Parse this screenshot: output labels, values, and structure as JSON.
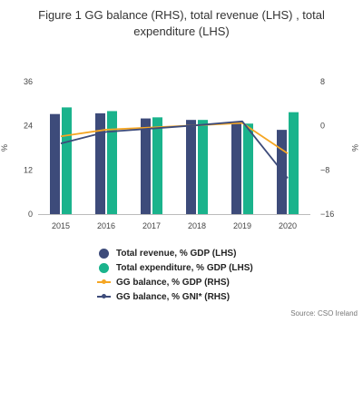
{
  "title": "Figure 1 GG balance (RHS), total revenue (LHS) , total expenditure (LHS)",
  "source": "Source: CSO Ireland",
  "chart_data": {
    "type": "bar",
    "categories": [
      "2015",
      "2016",
      "2017",
      "2018",
      "2019",
      "2020"
    ],
    "series": [
      {
        "name": "Total revenue, % GDP (LHS)",
        "kind": "bar",
        "axis": "left",
        "color": "#3d4b7a",
        "values": [
          27.2,
          27.4,
          26.0,
          25.6,
          24.8,
          22.9
        ]
      },
      {
        "name": "Total expenditure, % GDP (LHS)",
        "kind": "bar",
        "axis": "left",
        "color": "#1ab38c",
        "values": [
          29.0,
          28.0,
          26.3,
          25.6,
          24.6,
          27.7
        ]
      },
      {
        "name": "GG balance, % GDP (RHS)",
        "kind": "line",
        "axis": "right",
        "color": "#f5a623",
        "values": [
          -1.9,
          -0.7,
          -0.3,
          0.1,
          0.5,
          -5.0
        ]
      },
      {
        "name": "GG balance, % GNI* (RHS)",
        "kind": "line",
        "axis": "right",
        "color": "#3d4b7a",
        "values": [
          -3.2,
          -1.1,
          -0.5,
          0.1,
          0.8,
          -9.5
        ]
      }
    ],
    "left_axis": {
      "label": "%",
      "ticks": [
        "0",
        "12",
        "24",
        "36"
      ],
      "ylim": [
        0,
        36
      ]
    },
    "right_axis": {
      "label": "%",
      "ticks": [
        "−16",
        "−8",
        "0",
        "8"
      ],
      "ylim": [
        -16,
        8
      ]
    },
    "grid": false,
    "legend_position": "bottom-center"
  }
}
